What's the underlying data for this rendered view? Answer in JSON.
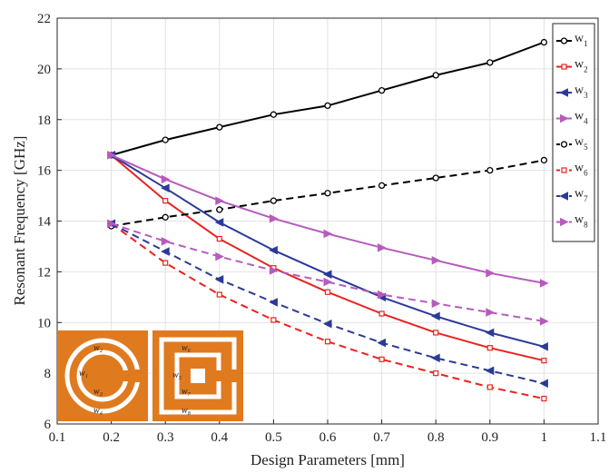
{
  "chart_data": {
    "type": "line",
    "xlabel": "Design Parameters [mm]",
    "ylabel": "Resonant Frequency [GHz]",
    "xlim": [
      0.1,
      1.1
    ],
    "ylim": [
      6,
      22
    ],
    "x_ticks": [
      "0.1",
      "0.2",
      "0.3",
      "0.4",
      "0.5",
      "0.6",
      "0.7",
      "0.8",
      "0.9",
      "1",
      "1.1"
    ],
    "y_ticks": [
      "6",
      "8",
      "10",
      "12",
      "14",
      "16",
      "18",
      "20",
      "22"
    ],
    "grid": true,
    "legend_position": "top-right",
    "x": [
      0.2,
      0.3,
      0.4,
      0.5,
      0.6,
      0.7,
      0.8,
      0.9,
      1.0
    ],
    "series": [
      {
        "name": "w",
        "sub": "1",
        "color": "#000000",
        "dash": "solid",
        "marker": "circle",
        "values": [
          16.6,
          17.2,
          17.7,
          18.2,
          18.55,
          19.15,
          19.75,
          20.25,
          21.05
        ]
      },
      {
        "name": "w",
        "sub": "2",
        "color": "#e8231f",
        "dash": "solid",
        "marker": "square",
        "values": [
          16.6,
          14.8,
          13.3,
          12.15,
          11.2,
          10.35,
          9.6,
          9.0,
          8.5
        ]
      },
      {
        "name": "w",
        "sub": "3",
        "color": "#2b3a98",
        "dash": "solid",
        "marker": "triangle-left",
        "values": [
          16.6,
          15.3,
          13.95,
          12.85,
          11.9,
          11.0,
          10.25,
          9.6,
          9.05
        ]
      },
      {
        "name": "w",
        "sub": "4",
        "color": "#b65bbd",
        "dash": "solid",
        "marker": "triangle-right",
        "values": [
          16.6,
          15.65,
          14.8,
          14.1,
          13.5,
          12.95,
          12.45,
          11.95,
          11.55
        ]
      },
      {
        "name": "w",
        "sub": "5",
        "color": "#000000",
        "dash": "dashed",
        "marker": "circle",
        "values": [
          13.8,
          14.15,
          14.45,
          14.8,
          15.1,
          15.4,
          15.7,
          16.0,
          16.4
        ]
      },
      {
        "name": "w",
        "sub": "6",
        "color": "#e8231f",
        "dash": "dashed",
        "marker": "square",
        "values": [
          13.9,
          12.35,
          11.1,
          10.1,
          9.25,
          8.55,
          8.0,
          7.45,
          7.0
        ]
      },
      {
        "name": "w",
        "sub": "7",
        "color": "#2b3a98",
        "dash": "dashed",
        "marker": "triangle-left",
        "values": [
          13.9,
          12.8,
          11.7,
          10.8,
          9.95,
          9.2,
          8.6,
          8.1,
          7.6
        ]
      },
      {
        "name": "w",
        "sub": "8",
        "color": "#b65bbd",
        "dash": "dashed",
        "marker": "triangle-right",
        "values": [
          13.9,
          13.2,
          12.6,
          12.05,
          11.6,
          11.1,
          10.75,
          10.4,
          10.05
        ]
      }
    ]
  },
  "insets": {
    "fill_color": "#e07a1f",
    "circular": {
      "labels": [
        "w₂",
        "w₁",
        "w₃",
        "w₄"
      ]
    },
    "square": {
      "labels": [
        "w₆",
        "w₅",
        "w₇",
        "w₈"
      ]
    }
  }
}
